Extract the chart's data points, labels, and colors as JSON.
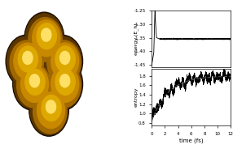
{
  "title": "",
  "energy_ylabel": "energy (E_h)",
  "entropy_ylabel": "entropy",
  "xlabel": "time (fs)",
  "xlim": [
    0,
    12
  ],
  "energy_ylim": [
    -1.46,
    -1.25
  ],
  "entropy_ylim": [
    0.75,
    1.95
  ],
  "energy_yticks": [
    -1.25,
    -1.3,
    -1.35,
    -1.4,
    -1.45
  ],
  "entropy_yticks": [
    0.8,
    1.0,
    1.2,
    1.4,
    1.6,
    1.8
  ],
  "xticks": [
    0,
    2,
    4,
    6,
    8,
    10,
    12
  ],
  "bg_color": "#ffffff",
  "line_color": "#000000",
  "dashed_color": "#555555"
}
